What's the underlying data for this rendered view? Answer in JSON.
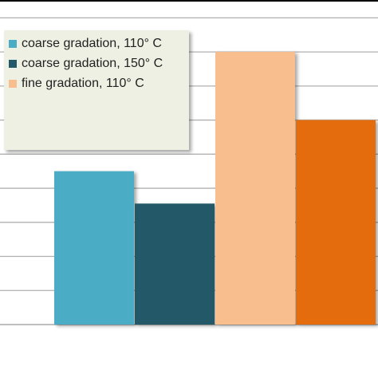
{
  "chart_data": {
    "type": "bar",
    "series": [
      {
        "name": "coarse gradation, 110° C",
        "color": "#4bacc6",
        "values": [
          4.5
        ]
      },
      {
        "name": "coarse gradation, 150° C",
        "color": "#215968",
        "values": [
          3.55
        ]
      },
      {
        "name": "fine gradation, 110° C",
        "color": "#f9be8e",
        "values": [
          8.0
        ]
      },
      {
        "color": "#e46c0a",
        "values": [
          6.0
        ]
      }
    ],
    "ylim": [
      0,
      9.5
    ],
    "yticks": [
      0,
      1,
      2,
      3,
      4,
      5,
      6,
      7,
      8,
      9
    ],
    "grid": true,
    "legend": "upper-left"
  }
}
